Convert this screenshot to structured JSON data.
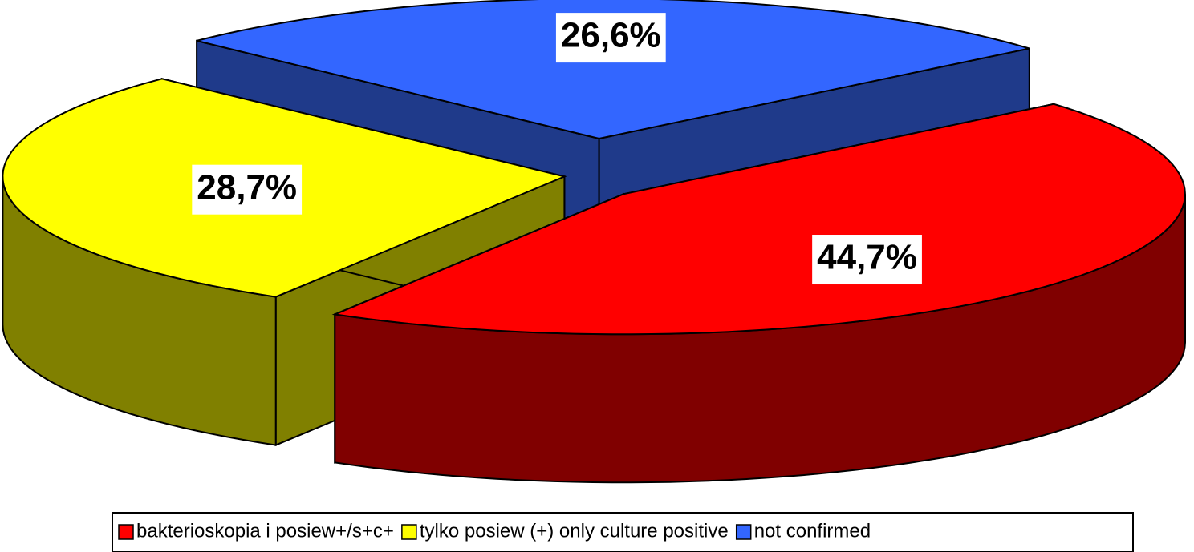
{
  "chart_data": {
    "type": "pie",
    "categories": [
      "bakterioskopia i posiew+/s+c+",
      "tylko posiew (+) only culture positive",
      "not confirmed"
    ],
    "values": [
      44.7,
      28.7,
      26.6
    ],
    "value_labels": [
      "44,7%",
      "28,7%",
      "26,6%"
    ],
    "colors": [
      "#ff0000",
      "#ffff00",
      "#3366ff"
    ],
    "side_colors": [
      "#800000",
      "#808000",
      "#1f3a8a"
    ],
    "legend": "bottom"
  }
}
